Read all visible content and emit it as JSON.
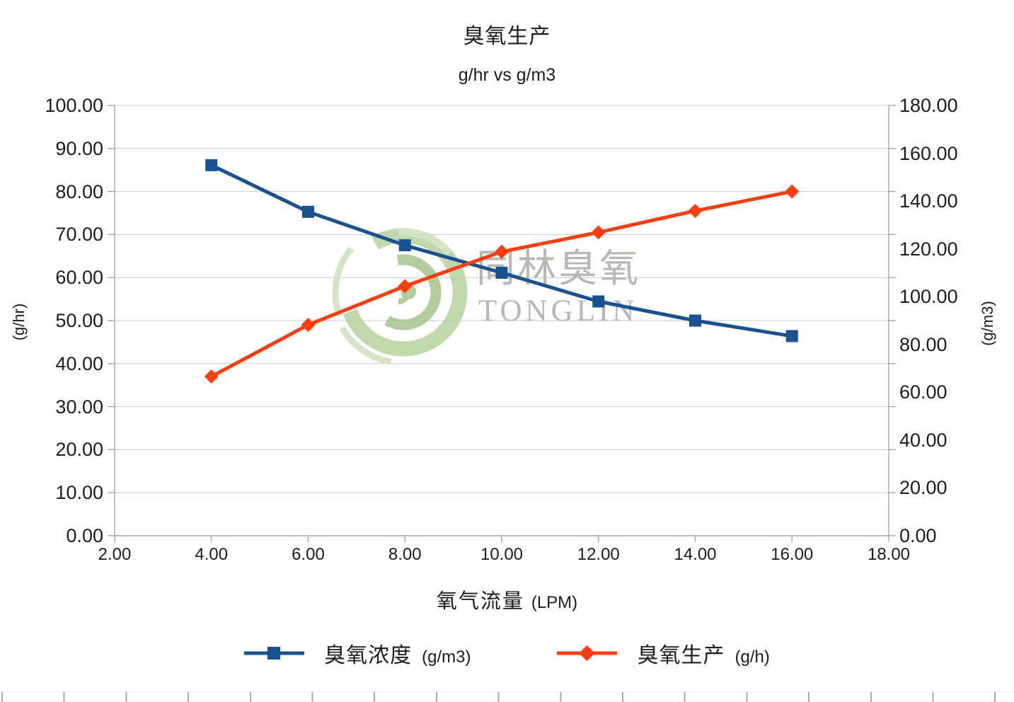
{
  "title": "臭氧生产",
  "subtitle": "g/hr vs g/m3",
  "watermark": {
    "text_cjk": "同林臭氧",
    "text_latin": "TONGLIN"
  },
  "chart_data": {
    "type": "line",
    "title": "臭氧生产",
    "subtitle": "g/hr vs g/m3",
    "x": [
      4,
      6,
      8,
      10,
      12,
      14,
      16
    ],
    "x_range": [
      2,
      18
    ],
    "x_tick_step": 2,
    "x_ticks": [
      "2.00",
      "4.00",
      "6.00",
      "8.00",
      "10.00",
      "12.00",
      "14.00",
      "16.00",
      "18.00"
    ],
    "xlabel": "氧气流量",
    "xlabel_unit": "(LPM)",
    "left_axis": {
      "label": "(g/hr)",
      "range": [
        0,
        100
      ],
      "tick_step": 10,
      "ticks": [
        "0.00",
        "10.00",
        "20.00",
        "30.00",
        "40.00",
        "50.00",
        "60.00",
        "70.00",
        "80.00",
        "90.00",
        "100.00"
      ]
    },
    "right_axis": {
      "label": "(g/m3)",
      "range": [
        0,
        180
      ],
      "tick_step": 20,
      "ticks": [
        "0.00",
        "20.00",
        "40.00",
        "60.00",
        "80.00",
        "100.00",
        "120.00",
        "140.00",
        "160.00",
        "180.00"
      ]
    },
    "grid": "horizontal",
    "legend_position": "bottom",
    "series": [
      {
        "name": "臭氧浓度",
        "unit": "(g/m3)",
        "axis": "right",
        "marker": "square",
        "color": "#1a5191",
        "values": [
          155,
          135.5,
          121.5,
          110,
          98,
          90,
          83.5
        ]
      },
      {
        "name": "臭氧生产",
        "unit": "(g/h)",
        "axis": "left",
        "marker": "diamond",
        "color": "#fa3e11",
        "values": [
          37,
          49,
          58,
          66,
          70.5,
          75.5,
          80
        ]
      }
    ]
  },
  "colors": {
    "axis_line": "#a6a6a6",
    "gridline": "#c9c9c9",
    "watermark_text": "#b4b9b1",
    "logo_green_light": "#cde0ba",
    "logo_green_mid": "#b7d29f",
    "logo_green_dark": "#a5c58c"
  }
}
